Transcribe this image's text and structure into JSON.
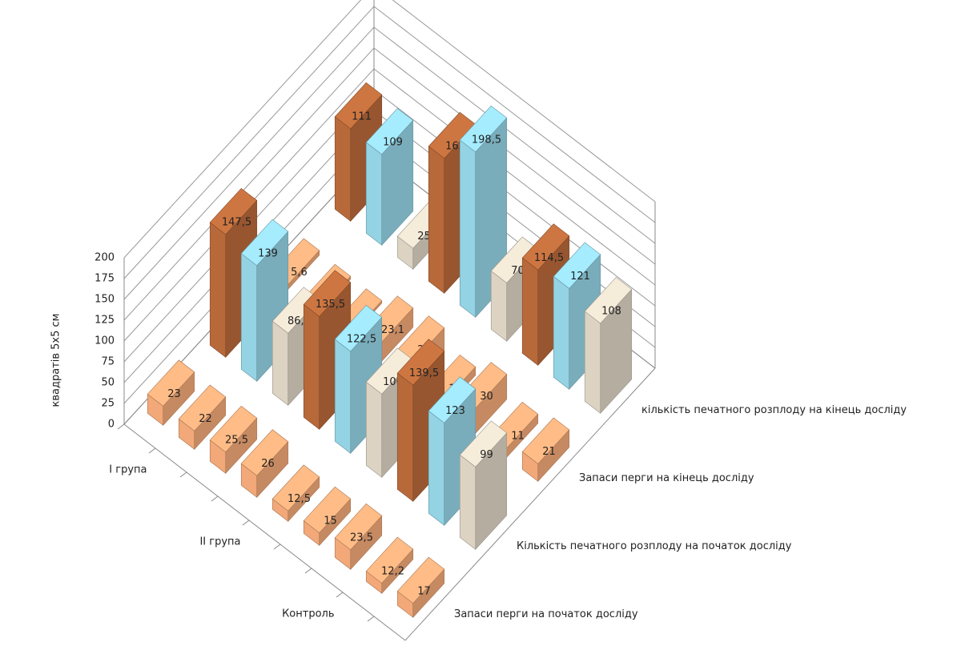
{
  "chart_data": {
    "type": "bar3d",
    "y_label": "квадратів 5х5 см",
    "categories": [
      null,
      "І група",
      null,
      null,
      "ІІ група",
      null,
      null,
      "Контроль",
      null
    ],
    "ylim": [
      0,
      200
    ],
    "yticks": [
      0,
      25,
      50,
      75,
      100,
      125,
      150,
      175,
      200
    ],
    "grid": true,
    "series": [
      {
        "name": "Запаси перги на початок досліду",
        "color": "#f2a878",
        "values": [
          23,
          22,
          25.5,
          26,
          12.5,
          15,
          23.5,
          12.2,
          17
        ],
        "value_labels": [
          "23",
          "22",
          "25,5",
          "26",
          "12,5",
          "15",
          "23,5",
          "12,2",
          "17"
        ]
      },
      {
        "name": "Кількість печатного розплоду на початок досліду",
        "colors": [
          "#b8693a",
          "#93d3e4",
          "#dcd3c3",
          "#b8693a",
          "#93d3e4",
          "#dcd3c3",
          "#b8693a",
          "#93d3e4",
          "#dcd3c3"
        ],
        "values": [
          147.5,
          139,
          86.5,
          135.5,
          122.5,
          100,
          139.5,
          123,
          99
        ],
        "value_labels": [
          "147,5",
          "139",
          "86,5",
          "135,5",
          "122,5",
          "100",
          "139,5",
          "123",
          "99"
        ]
      },
      {
        "name": "Запаси перги на кінець досліду",
        "color": "#f2a878",
        "values": [
          5.6,
          3.5,
          3,
          23.1,
          28,
          10,
          30,
          11,
          21
        ],
        "value_labels": [
          "5,6",
          "3,5",
          "3",
          "23,1",
          "28",
          "10",
          "30",
          "11",
          "21"
        ]
      },
      {
        "name": "кількість печатного розплоду на кінець досліду",
        "colors": [
          "#b8693a",
          "#93d3e4",
          "#dcd3c3",
          "#b8693a",
          "#93d3e4",
          "#dcd3c3",
          "#b8693a",
          "#93d3e4",
          "#dcd3c3"
        ],
        "values": [
          111,
          109,
          25,
          162,
          198.5,
          70,
          114.5,
          121,
          108
        ],
        "value_labels": [
          "111",
          "109",
          "25",
          "162",
          "198,5",
          "70",
          "114,5",
          "121",
          "108"
        ]
      }
    ]
  }
}
